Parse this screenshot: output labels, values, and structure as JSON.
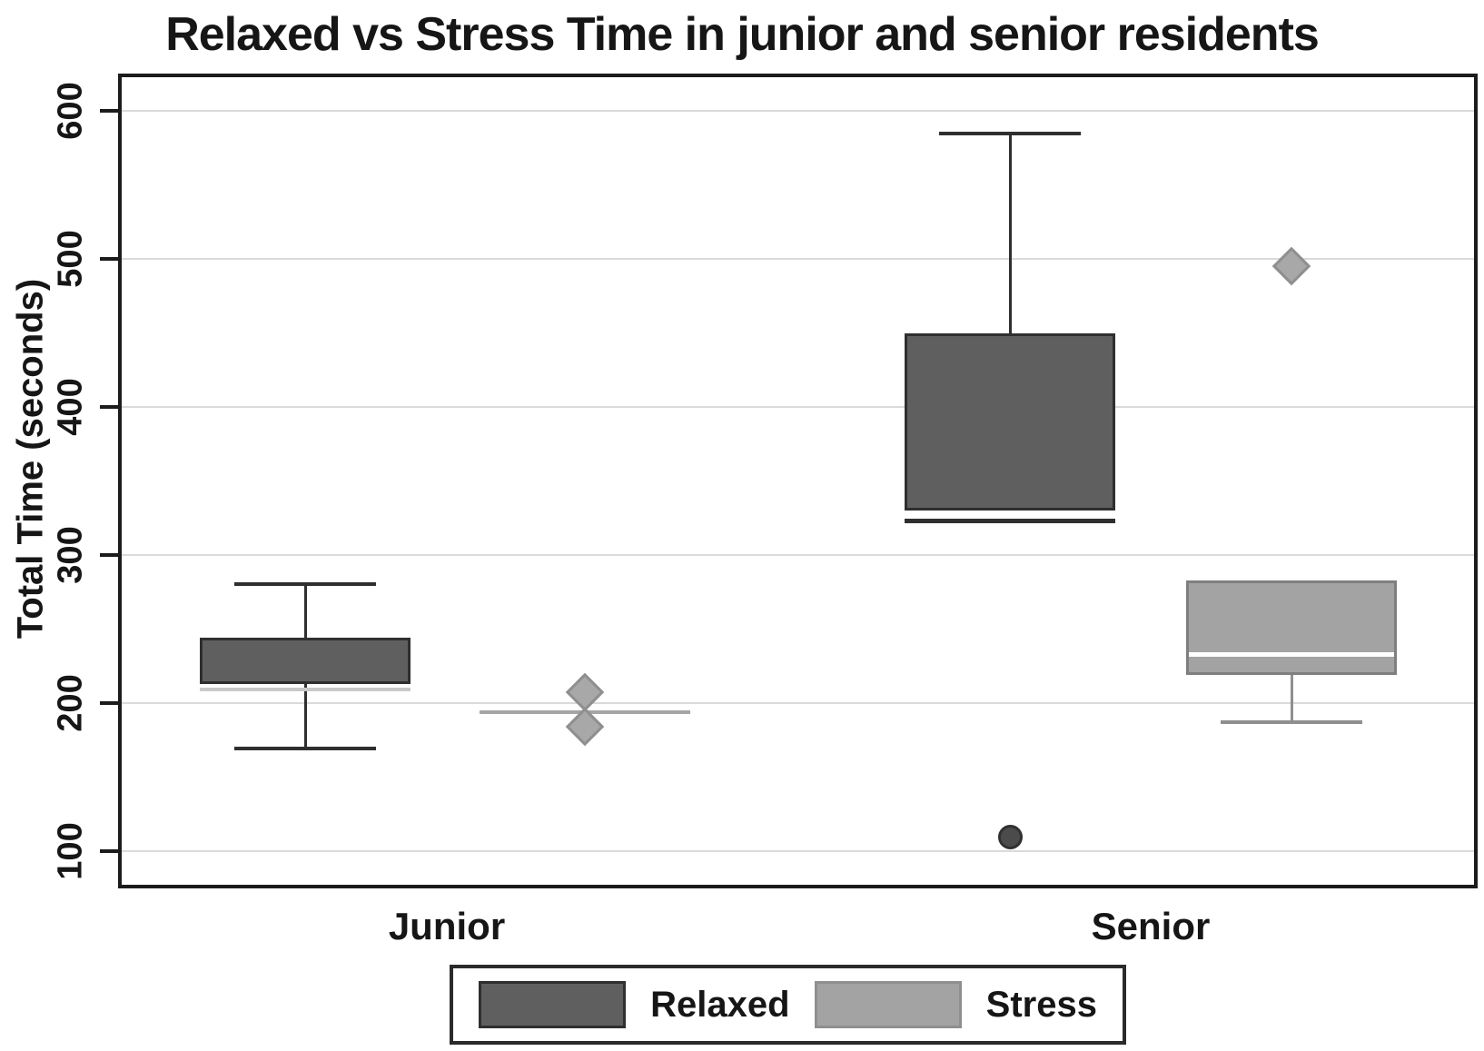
{
  "title": "Relaxed vs Stress Time in junior and senior residents",
  "chart_data": {
    "type": "box",
    "title": "Relaxed vs Stress Time in junior and senior residents",
    "xlabel": "",
    "ylabel": "Total Time (seconds)",
    "ylim": [
      77,
      623
    ],
    "yticks": [
      100,
      200,
      300,
      400,
      500,
      600
    ],
    "grid": "horizontal",
    "categories": [
      "Junior",
      "Senior"
    ],
    "legend_position": "bottom",
    "legend": [
      {
        "label": "Relaxed",
        "fill": "#5f5f5f",
        "border": "#2f2f2f"
      },
      {
        "label": "Stress",
        "fill": "#a3a3a3",
        "border": "#8f8f8f"
      }
    ],
    "series_styles": {
      "Relaxed": {
        "fill": "#5f5f5f",
        "border": "#2f2f2f",
        "whisker": "#2f2f2f"
      },
      "Stress": {
        "fill": "#a3a3a3",
        "border": "#7f7f7f",
        "whisker": "#8f8f8f"
      }
    },
    "outlier_styles": {
      "diamond": {
        "fill": "#a8a8a8",
        "border": "#8f8f8f",
        "size": 30
      },
      "circle": {
        "fill": "#4b4b4b",
        "border": "#303030",
        "size": 27
      }
    },
    "groups": [
      {
        "category": "Junior",
        "series": "Relaxed",
        "q1": 213,
        "median": 209,
        "q3": 244,
        "whisker_low": 169,
        "whisker_high": 280,
        "median_color": "#c9c9c9",
        "median_thickness": 4,
        "median_inset": 0,
        "outliers": []
      },
      {
        "category": "Junior",
        "series": "Stress",
        "q1": 194,
        "median": 194,
        "q3": 194,
        "whisker_low": null,
        "whisker_high": null,
        "median_color": "#a5a5a5",
        "median_thickness": 4,
        "median_inset": 0,
        "outliers": [
          {
            "shape": "diamond",
            "value": 207
          },
          {
            "shape": "diamond",
            "value": 184
          }
        ]
      },
      {
        "category": "Senior",
        "series": "Relaxed",
        "q1": 330,
        "median": 323,
        "q3": 450,
        "whisker_low": null,
        "whisker_high": 585,
        "median_color": "#2f2f2f",
        "median_thickness": 5,
        "median_inset": 0,
        "outliers": [
          {
            "shape": "circle",
            "value": 109
          }
        ]
      },
      {
        "category": "Senior",
        "series": "Stress",
        "q1": 219,
        "median": 233,
        "q3": 283,
        "whisker_low": 187,
        "whisker_high": null,
        "median_color": "#ffffff",
        "median_thickness": 5,
        "median_inset": 3,
        "outliers": [
          {
            "shape": "diamond",
            "value": 495
          }
        ]
      }
    ]
  }
}
